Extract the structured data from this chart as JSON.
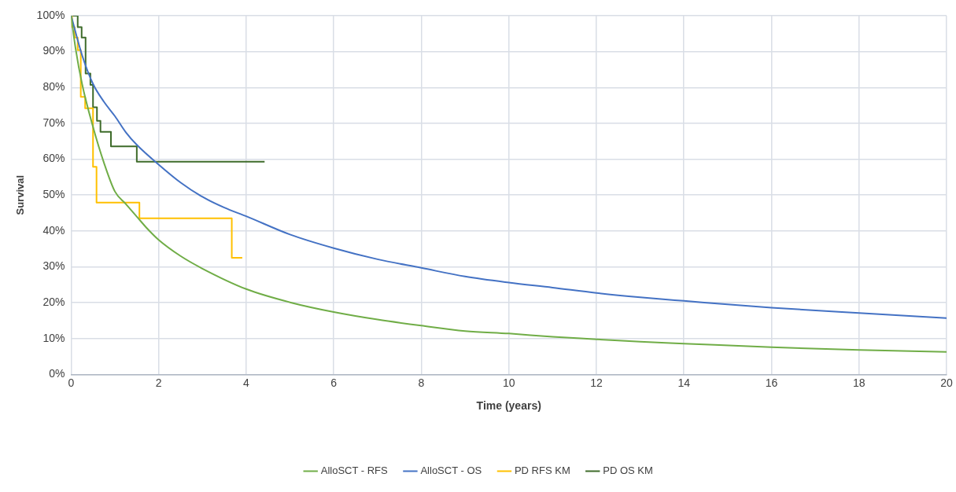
{
  "chart_data": {
    "type": "line",
    "xlabel": "Time (years)",
    "ylabel": "Survival",
    "xlim": [
      0,
      20
    ],
    "xticks": [
      0,
      2,
      4,
      6,
      8,
      10,
      12,
      14,
      16,
      18,
      20
    ],
    "ylim": [
      0,
      100
    ],
    "yticks": [
      {
        "value": 0,
        "label": "0%"
      },
      {
        "value": 10,
        "label": "10%"
      },
      {
        "value": 20,
        "label": "20%"
      },
      {
        "value": 30,
        "label": "30%"
      },
      {
        "value": 40,
        "label": "40%"
      },
      {
        "value": 50,
        "label": "50%"
      },
      {
        "value": 60,
        "label": "60%"
      },
      {
        "value": 70,
        "label": "70%"
      },
      {
        "value": 80,
        "label": "80%"
      },
      {
        "value": 90,
        "label": "90%"
      },
      {
        "value": 100,
        "label": "100%"
      }
    ],
    "grid": true,
    "legend": "bottom",
    "marker": "none",
    "line_style": "solid",
    "series": [
      {
        "name": "AlloSCT - RFS",
        "type": "line",
        "color": "#70ad47",
        "x": [
          0,
          0.1,
          0.25,
          0.5,
          0.75,
          1,
          1.25,
          1.5,
          1.75,
          2,
          2.5,
          3,
          4,
          5,
          6,
          7,
          8,
          9,
          10,
          11,
          12,
          13,
          14,
          16,
          18,
          20
        ],
        "values": [
          100,
          91,
          81,
          69,
          59,
          51,
          47.5,
          44,
          40.5,
          37.5,
          33,
          29.5,
          23.8,
          20.1,
          17.4,
          15.3,
          13.6,
          12.1,
          11.4,
          10.5,
          9.8,
          9.1,
          8.6,
          7.6,
          6.8,
          6.3
        ]
      },
      {
        "name": "AlloSCT - OS",
        "type": "line",
        "color": "#4472c4",
        "x": [
          0,
          0.25,
          0.5,
          0.75,
          1,
          1.25,
          1.5,
          2,
          2.5,
          3,
          3.5,
          4,
          5,
          6,
          7,
          8,
          9,
          10,
          11,
          12,
          13,
          14,
          16,
          18,
          20
        ],
        "values": [
          100,
          89,
          81,
          76,
          72,
          67.5,
          64,
          58.5,
          53.5,
          49.5,
          46.5,
          44.1,
          39,
          35.2,
          32.1,
          29.7,
          27.3,
          25.6,
          24.2,
          22.7,
          21.5,
          20.5,
          18.6,
          17.1,
          15.7
        ]
      },
      {
        "name": "PD RFS KM",
        "type": "step",
        "color": "#ffc000",
        "x": [
          0,
          0.02,
          0.08,
          0.15,
          0.22,
          0.32,
          0.5,
          0.58,
          1.56,
          3.67,
          3.91
        ],
        "values": [
          100,
          96.8,
          93.9,
          90.4,
          77.4,
          74.2,
          57.9,
          47.9,
          43.5,
          32.5,
          32.5
        ]
      },
      {
        "name": "PD OS KM",
        "type": "step",
        "color": "#3e6b2a",
        "x": [
          0,
          0.15,
          0.24,
          0.33,
          0.44,
          0.5,
          0.59,
          0.67,
          0.91,
          1.5,
          4.42
        ],
        "values": [
          100,
          96.8,
          93.9,
          83.9,
          80.7,
          74.5,
          70.7,
          67.6,
          63.6,
          59.3,
          59.3
        ]
      }
    ]
  }
}
